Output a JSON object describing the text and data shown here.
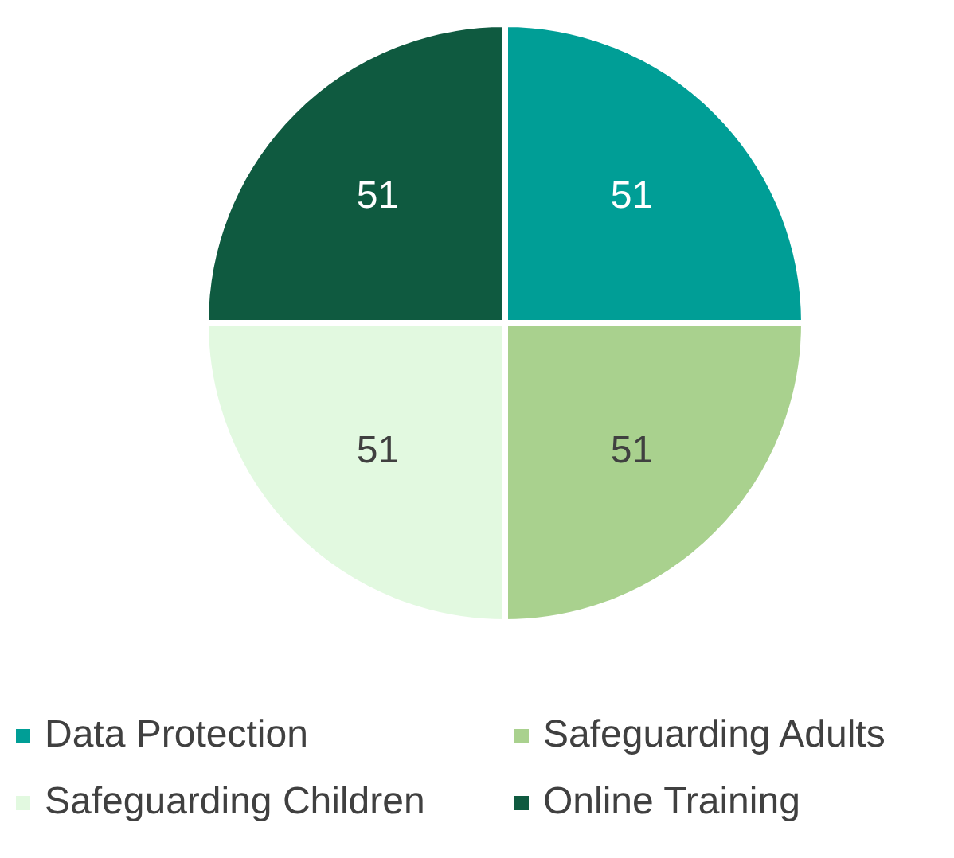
{
  "chart_data": {
    "type": "pie",
    "categories": [
      "Data Protection",
      "Safeguarding Adults",
      "Safeguarding Children",
      "Online Training"
    ],
    "values": [
      51,
      51,
      51,
      51
    ],
    "colors": [
      "#009e96",
      "#a9d18e",
      "#e2f9e0",
      "#0f5a40"
    ],
    "data_labels": true,
    "legend": "bottom"
  }
}
